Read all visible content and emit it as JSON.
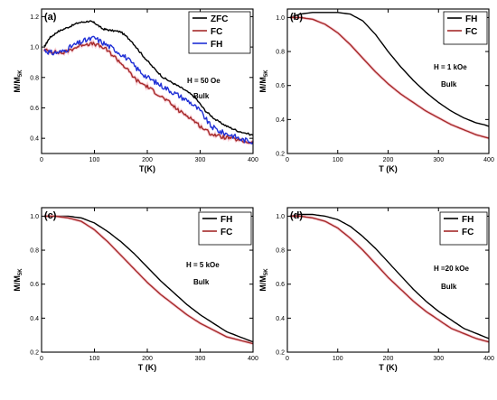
{
  "chart_data": [
    {
      "type": "line",
      "panel_label": "(a)",
      "xlabel": "T(K)",
      "ylabel": "M/M",
      "ylabel_sub": "5K",
      "xlim": [
        0,
        400
      ],
      "ylim": [
        0.3,
        1.25
      ],
      "xticks": [
        0,
        100,
        200,
        300,
        400
      ],
      "yticks": [
        0.4,
        0.6,
        0.8,
        1.0,
        1.2
      ],
      "annotations": [
        "H = 50 Oe",
        "Bulk"
      ],
      "legend_position": "top-right",
      "series": [
        {
          "name": "ZFC",
          "color": "#000000",
          "noise": 0.006,
          "x": [
            5,
            15,
            30,
            50,
            70,
            90,
            100,
            115,
            130,
            150,
            170,
            190,
            210,
            230,
            250,
            270,
            290,
            310,
            330,
            350,
            370,
            400
          ],
          "y": [
            1.0,
            1.06,
            1.1,
            1.13,
            1.16,
            1.17,
            1.16,
            1.12,
            1.11,
            1.1,
            1.04,
            0.95,
            0.87,
            0.8,
            0.76,
            0.72,
            0.67,
            0.58,
            0.52,
            0.48,
            0.45,
            0.42
          ]
        },
        {
          "name": "FC",
          "color": "#a52a2a",
          "noise": 0.012,
          "x": [
            5,
            20,
            40,
            60,
            80,
            100,
            120,
            140,
            160,
            180,
            200,
            220,
            240,
            260,
            280,
            300,
            320,
            340,
            360,
            380,
            400
          ],
          "y": [
            0.98,
            0.97,
            0.96,
            0.99,
            1.02,
            1.02,
            0.99,
            0.93,
            0.86,
            0.78,
            0.74,
            0.69,
            0.64,
            0.58,
            0.54,
            0.48,
            0.43,
            0.41,
            0.4,
            0.38,
            0.37
          ]
        },
        {
          "name": "FH",
          "color": "#1f2fd6",
          "noise": 0.018,
          "x": [
            5,
            20,
            40,
            60,
            80,
            100,
            120,
            140,
            160,
            180,
            200,
            220,
            240,
            260,
            280,
            300,
            320,
            340,
            360,
            380,
            400
          ],
          "y": [
            0.98,
            0.96,
            0.97,
            1.01,
            1.04,
            1.06,
            1.02,
            0.98,
            0.93,
            0.86,
            0.8,
            0.76,
            0.72,
            0.68,
            0.64,
            0.58,
            0.48,
            0.44,
            0.42,
            0.39,
            0.38
          ]
        }
      ]
    },
    {
      "type": "line",
      "panel_label": "(b)",
      "xlabel": "T (K)",
      "ylabel": "M/M",
      "ylabel_sub": "5K",
      "xlim": [
        0,
        400
      ],
      "ylim": [
        0.2,
        1.05
      ],
      "xticks": [
        0,
        100,
        200,
        300,
        400
      ],
      "yticks": [
        0.2,
        0.4,
        0.6,
        0.8,
        1.0
      ],
      "annotations": [
        "H = 1 kOe",
        "Bulk"
      ],
      "legend_position": "top-right",
      "series": [
        {
          "name": "FH",
          "color": "#000000",
          "noise": 0.0,
          "x": [
            5,
            25,
            50,
            75,
            100,
            125,
            150,
            175,
            200,
            225,
            250,
            275,
            300,
            325,
            350,
            375,
            390,
            400
          ],
          "y": [
            1.0,
            1.02,
            1.03,
            1.03,
            1.03,
            1.02,
            0.98,
            0.9,
            0.8,
            0.71,
            0.63,
            0.56,
            0.5,
            0.45,
            0.41,
            0.38,
            0.37,
            0.36
          ]
        },
        {
          "name": "FC",
          "color": "#a52a2a",
          "noise": 0.0,
          "x": [
            5,
            25,
            50,
            75,
            100,
            125,
            150,
            175,
            200,
            225,
            250,
            275,
            300,
            325,
            350,
            375,
            400
          ],
          "y": [
            1.0,
            1.0,
            0.99,
            0.96,
            0.91,
            0.84,
            0.76,
            0.68,
            0.61,
            0.55,
            0.5,
            0.45,
            0.41,
            0.37,
            0.34,
            0.31,
            0.29
          ]
        }
      ]
    },
    {
      "type": "line",
      "panel_label": "(c)",
      "xlabel": "T (K)",
      "ylabel": "M/M",
      "ylabel_sub": "5K",
      "xlim": [
        0,
        400
      ],
      "ylim": [
        0.2,
        1.05
      ],
      "xticks": [
        0,
        100,
        200,
        300,
        400
      ],
      "yticks": [
        0.2,
        0.4,
        0.6,
        0.8,
        1.0
      ],
      "annotations": [
        "H = 5 kOe",
        "Bulk"
      ],
      "legend_position": "top-right",
      "series": [
        {
          "name": "FH",
          "color": "#000000",
          "noise": 0.0,
          "x": [
            5,
            25,
            50,
            75,
            100,
            125,
            150,
            175,
            200,
            225,
            250,
            275,
            300,
            325,
            350,
            375,
            400
          ],
          "y": [
            1.0,
            1.0,
            1.0,
            0.99,
            0.96,
            0.91,
            0.85,
            0.78,
            0.7,
            0.62,
            0.55,
            0.48,
            0.42,
            0.37,
            0.32,
            0.29,
            0.26
          ]
        },
        {
          "name": "FC",
          "color": "#a52a2a",
          "noise": 0.0,
          "x": [
            5,
            25,
            50,
            75,
            100,
            125,
            150,
            175,
            200,
            225,
            250,
            275,
            300,
            325,
            350,
            375,
            400
          ],
          "y": [
            1.0,
            1.0,
            0.99,
            0.97,
            0.92,
            0.85,
            0.77,
            0.69,
            0.61,
            0.54,
            0.48,
            0.42,
            0.37,
            0.33,
            0.29,
            0.27,
            0.25
          ]
        }
      ]
    },
    {
      "type": "line",
      "panel_label": "(d)",
      "xlabel": "T (K)",
      "ylabel": "M/M",
      "ylabel_sub": "5K",
      "xlim": [
        0,
        400
      ],
      "ylim": [
        0.2,
        1.05
      ],
      "xticks": [
        0,
        100,
        200,
        300,
        400
      ],
      "yticks": [
        0.2,
        0.4,
        0.6,
        0.8,
        1.0
      ],
      "annotations": [
        "H =20 kOe",
        "Bulk"
      ],
      "legend_position": "top-right",
      "series": [
        {
          "name": "FH",
          "color": "#000000",
          "noise": 0.0,
          "x": [
            5,
            25,
            50,
            75,
            100,
            125,
            150,
            175,
            200,
            225,
            250,
            275,
            300,
            325,
            350,
            375,
            400
          ],
          "y": [
            1.0,
            1.01,
            1.01,
            1.0,
            0.98,
            0.94,
            0.88,
            0.81,
            0.73,
            0.65,
            0.57,
            0.5,
            0.44,
            0.39,
            0.34,
            0.31,
            0.28
          ]
        },
        {
          "name": "FC",
          "color": "#a52a2a",
          "noise": 0.0,
          "x": [
            5,
            25,
            50,
            75,
            100,
            125,
            150,
            175,
            200,
            225,
            250,
            275,
            300,
            325,
            350,
            375,
            400
          ],
          "y": [
            1.0,
            1.0,
            0.99,
            0.97,
            0.93,
            0.87,
            0.8,
            0.72,
            0.64,
            0.57,
            0.5,
            0.44,
            0.39,
            0.34,
            0.31,
            0.28,
            0.26
          ]
        }
      ]
    }
  ]
}
